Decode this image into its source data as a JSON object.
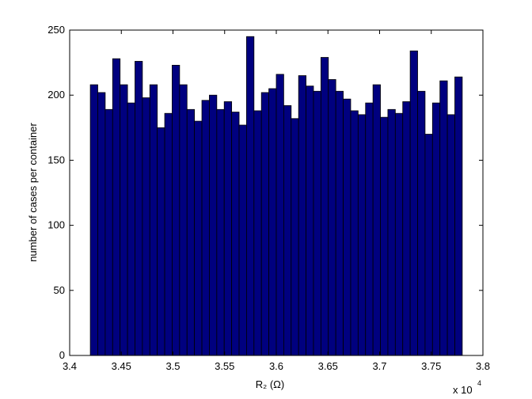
{
  "chart_data": {
    "type": "histogram",
    "xlabel": "R₂ (Ω)",
    "ylabel": "number of cases per container",
    "x_multiplier": {
      "base": "x 10",
      "exponent": "4"
    },
    "bins": [
      3.42,
      3.4272,
      3.4344,
      3.4416,
      3.4488,
      3.456,
      3.4632,
      3.4704,
      3.4776,
      3.4848,
      3.492,
      3.4992,
      3.5064,
      3.5136,
      3.5208,
      3.528,
      3.5352,
      3.5424,
      3.5496,
      3.5568,
      3.564,
      3.5712,
      3.5784,
      3.5856,
      3.5928,
      3.6,
      3.6072,
      3.6144,
      3.6216,
      3.6288,
      3.636,
      3.6432,
      3.6504,
      3.6576,
      3.6648,
      3.672,
      3.6792,
      3.6864,
      3.6936,
      3.7008,
      3.708,
      3.7152,
      3.7224,
      3.7296,
      3.7368,
      3.744,
      3.7512,
      3.7584,
      3.7656,
      3.7728,
      3.78
    ],
    "values": [
      208,
      202,
      189,
      228,
      208,
      194,
      226,
      198,
      208,
      175,
      186,
      223,
      208,
      189,
      180,
      196,
      200,
      189,
      195,
      187,
      177,
      245,
      188,
      202,
      205,
      216,
      192,
      182,
      215,
      207,
      203,
      229,
      212,
      203,
      197,
      188,
      185,
      194,
      208,
      183,
      189,
      186,
      195,
      234,
      203,
      170,
      194,
      211,
      185,
      214
    ],
    "color": "#00007f",
    "edgecolor": "#000000",
    "xlim": [
      3.4,
      3.8
    ],
    "xticks": [
      3.4,
      3.45,
      3.5,
      3.55,
      3.6,
      3.65,
      3.7,
      3.75,
      3.8
    ],
    "ylim": [
      0,
      250
    ],
    "yticks": [
      0,
      50,
      100,
      150,
      200,
      250
    ],
    "grid": false
  }
}
